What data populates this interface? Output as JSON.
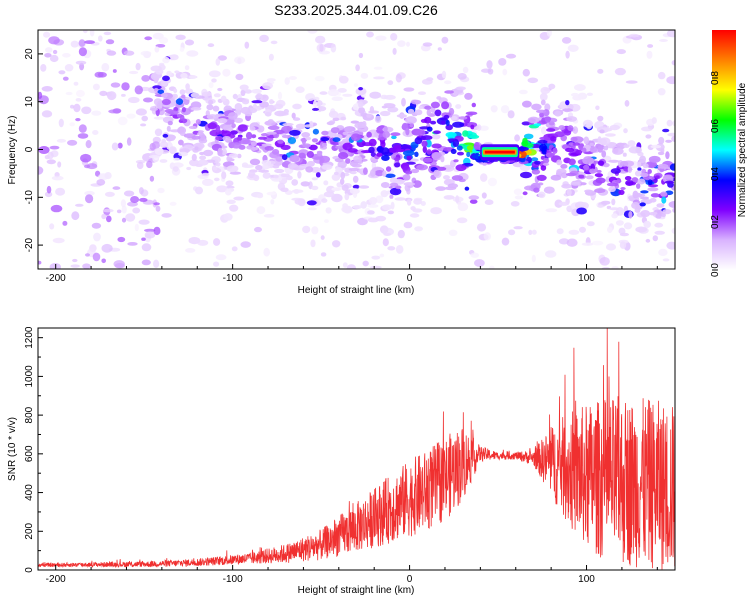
{
  "chart_data": [
    {
      "type": "heatmap",
      "title": "S233.2025.344.01.09.C26",
      "xlabel": "Height of straight line (km)",
      "ylabel": "Frequency (Hz)",
      "xlim": [
        -210,
        150
      ],
      "ylim": [
        -25,
        25
      ],
      "xticks": [
        -200,
        -100,
        0,
        100
      ],
      "yticks": [
        20,
        10,
        0,
        -10,
        -20
      ],
      "colorbar": {
        "label": "Normalized spectral amplitude",
        "range": [
          0,
          1
        ],
        "ticks": [
          "0.0",
          "0.2",
          "0.4",
          "0.6",
          "0.8"
        ],
        "tick_values": [
          0,
          0.2,
          0.4,
          0.6,
          0.8
        ],
        "stops": [
          "#ffffff",
          "#d9b3ff",
          "#8000ff",
          "#0000ff",
          "#00ffff",
          "#00ff00",
          "#ffff00",
          "#ff8000",
          "#ff0000"
        ]
      },
      "ridge": {
        "x": [
          -140,
          -120,
          -100,
          -80,
          -60,
          -40,
          -20,
          0,
          10,
          20,
          30,
          40,
          50,
          60,
          70,
          80,
          90,
          100,
          110,
          120,
          130,
          145
        ],
        "y": [
          9,
          5,
          3,
          2,
          0,
          1,
          0,
          -1,
          2,
          3,
          1,
          -1,
          -1,
          -1,
          -1,
          2,
          0,
          -3,
          -4,
          -6,
          -7,
          -7
        ],
        "amp": [
          0.2,
          0.25,
          0.25,
          0.22,
          0.25,
          0.2,
          0.3,
          0.4,
          0.45,
          0.45,
          0.5,
          0.95,
          1.0,
          1.0,
          0.6,
          0.3,
          0.35,
          0.3,
          0.25,
          0.3,
          0.2,
          0.3
        ]
      }
    },
    {
      "type": "line",
      "xlabel": "Height of straight line (km)",
      "ylabel": "SNR (10 * v/v)",
      "xlim": [
        -210,
        150
      ],
      "ylim": [
        0,
        1250
      ],
      "xticks": [
        -200,
        -100,
        0,
        100
      ],
      "yticks": [
        0,
        200,
        400,
        600,
        800,
        1000,
        1200
      ],
      "series": [
        {
          "name": "SNR",
          "color": "#f03030",
          "x": [
            -210,
            -180,
            -150,
            -130,
            -110,
            -90,
            -70,
            -50,
            -30,
            -10,
            0,
            10,
            20,
            30,
            40,
            50,
            60,
            70,
            80,
            90,
            100,
            110,
            120,
            130,
            140,
            150
          ],
          "mean": [
            25,
            28,
            30,
            35,
            45,
            60,
            85,
            130,
            220,
            320,
            370,
            410,
            470,
            550,
            600,
            590,
            590,
            580,
            560,
            520,
            480,
            470,
            460,
            450,
            440,
            420
          ],
          "spread": [
            10,
            12,
            15,
            18,
            22,
            30,
            50,
            80,
            130,
            180,
            200,
            210,
            220,
            200,
            40,
            20,
            20,
            40,
            180,
            300,
            380,
            420,
            440,
            440,
            440,
            440
          ]
        }
      ]
    }
  ]
}
